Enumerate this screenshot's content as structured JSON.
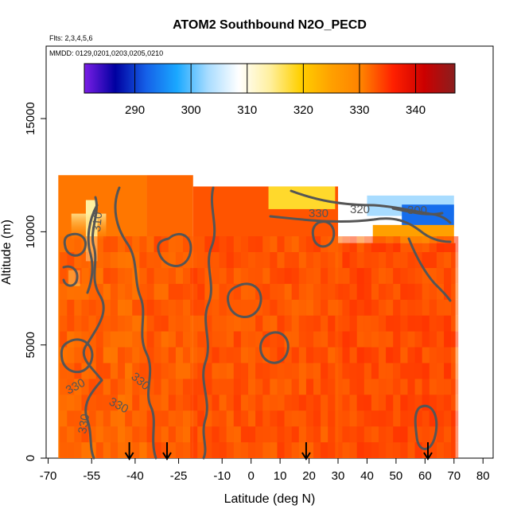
{
  "chart_data": {
    "type": "heatmap",
    "title": "ATOM2 Southbound N2O_PECD",
    "subtitle_flights": "Flts: 2,3,4,5,6",
    "subtitle_dates": "MMDD: 0129,0201,0203,0205,0210",
    "xlabel": "Latitude (deg N)",
    "ylabel": "Altitude (m)",
    "xlim": [
      -70,
      80
    ],
    "ylim": [
      0,
      17500
    ],
    "x_ticks": [
      -70,
      -55,
      -40,
      -25,
      -10,
      0,
      10,
      20,
      30,
      40,
      50,
      60,
      70,
      80
    ],
    "x_tick_labels": [
      "-70",
      "-55",
      "-40",
      "-25",
      "-10",
      "0",
      "10",
      "20",
      "30",
      "40",
      "50",
      "60",
      "70",
      "80"
    ],
    "y_ticks": [
      0,
      5000,
      10000,
      15000
    ],
    "y_tick_labels": [
      "0",
      "5000",
      "10000",
      "15000"
    ],
    "colorbar": {
      "range": [
        281,
        347
      ],
      "ticks": [
        290,
        300,
        310,
        320,
        330,
        340
      ],
      "tick_labels": [
        "290",
        "300",
        "310",
        "320",
        "330",
        "340"
      ],
      "stops": [
        "#7b1ee6",
        "#0000a0",
        "#1560e8",
        "#1aa8ff",
        "#a8dcff",
        "#ffffff",
        "#fff0a0",
        "#ffd000",
        "#ffa000",
        "#ff8000",
        "#ff2000",
        "#cc0000",
        "#8a1e1e"
      ]
    },
    "contour_labels": [
      "330",
      "320",
      "300",
      "310",
      "330",
      "330",
      "330",
      "330"
    ],
    "arrow_latitudes": [
      -42,
      -29,
      19,
      61
    ],
    "regions": [
      {
        "lat_from": -66.5,
        "lat_to": -36,
        "alt_from": 0,
        "alt_to": 12500,
        "value": 331
      },
      {
        "lat_from": -36,
        "lat_to": -20,
        "alt_from": 0,
        "alt_to": 12500,
        "value": 332
      },
      {
        "lat_from": -20,
        "lat_to": 30,
        "alt_from": 0,
        "alt_to": 12000,
        "value": 333
      },
      {
        "lat_from": 30,
        "lat_to": 70.5,
        "alt_from": 0,
        "alt_to": 9500,
        "value": 334
      },
      {
        "lat_from": -57,
        "lat_to": -53,
        "alt_from": 8700,
        "alt_to": 11400,
        "value": 314
      },
      {
        "lat_from": -63,
        "lat_to": -59,
        "alt_from": 7600,
        "alt_to": 8300,
        "value": 316
      },
      {
        "lat_from": 6,
        "lat_to": 29,
        "alt_from": 11000,
        "alt_to": 12000,
        "value": 318
      },
      {
        "lat_from": 40,
        "lat_to": 70,
        "alt_from": 10700,
        "alt_to": 11600,
        "value": 303
      },
      {
        "lat_from": 52,
        "lat_to": 70,
        "alt_from": 10200,
        "alt_to": 11200,
        "value": 293
      },
      {
        "lat_from": 42,
        "lat_to": 70,
        "alt_from": 9500,
        "alt_to": 10300,
        "value": 325
      }
    ]
  }
}
